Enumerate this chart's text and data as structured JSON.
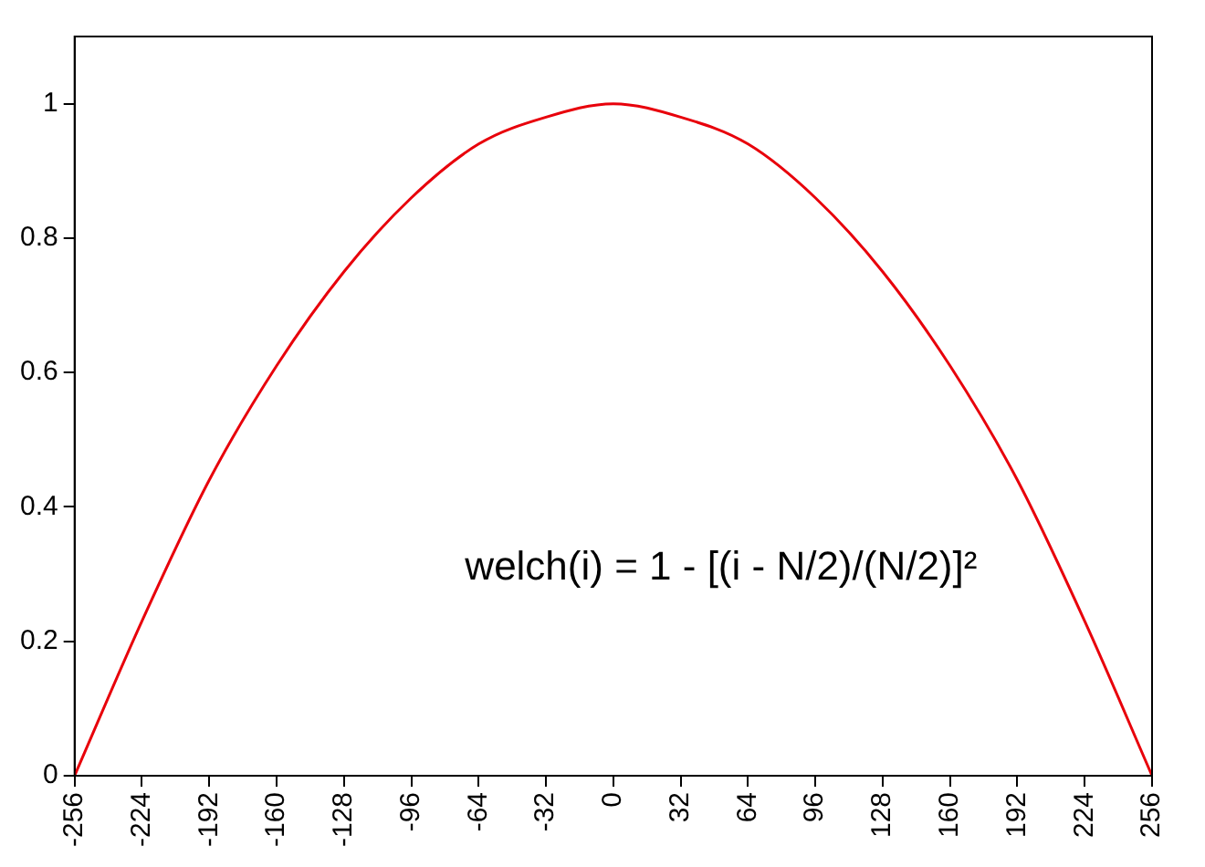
{
  "chart_data": {
    "type": "line",
    "x": [
      -256,
      -224,
      -192,
      -160,
      -128,
      -96,
      -64,
      -32,
      0,
      32,
      64,
      96,
      128,
      160,
      192,
      224,
      256
    ],
    "series": [
      {
        "color": "#e8000b",
        "values": [
          0,
          0.23,
          0.44,
          0.61,
          0.75,
          0.86,
          0.94,
          0.98,
          1,
          0.98,
          0.94,
          0.86,
          0.75,
          0.61,
          0.44,
          0.23,
          0
        ]
      }
    ],
    "xlim": [
      -256,
      256
    ],
    "xticks": [
      -256,
      -224,
      -192,
      -160,
      -128,
      -96,
      -64,
      -32,
      0,
      32,
      64,
      96,
      128,
      160,
      192,
      224,
      256
    ],
    "ylim": [
      0,
      1.1
    ],
    "yticks": [
      0,
      0.2,
      0.4,
      0.6,
      0.8,
      1
    ],
    "annotations": [
      "welch(i) = 1 - [(i - N/2)/(N/2)]²"
    ],
    "grid": false,
    "legend": false,
    "marker": "none",
    "line_style": "solid"
  }
}
